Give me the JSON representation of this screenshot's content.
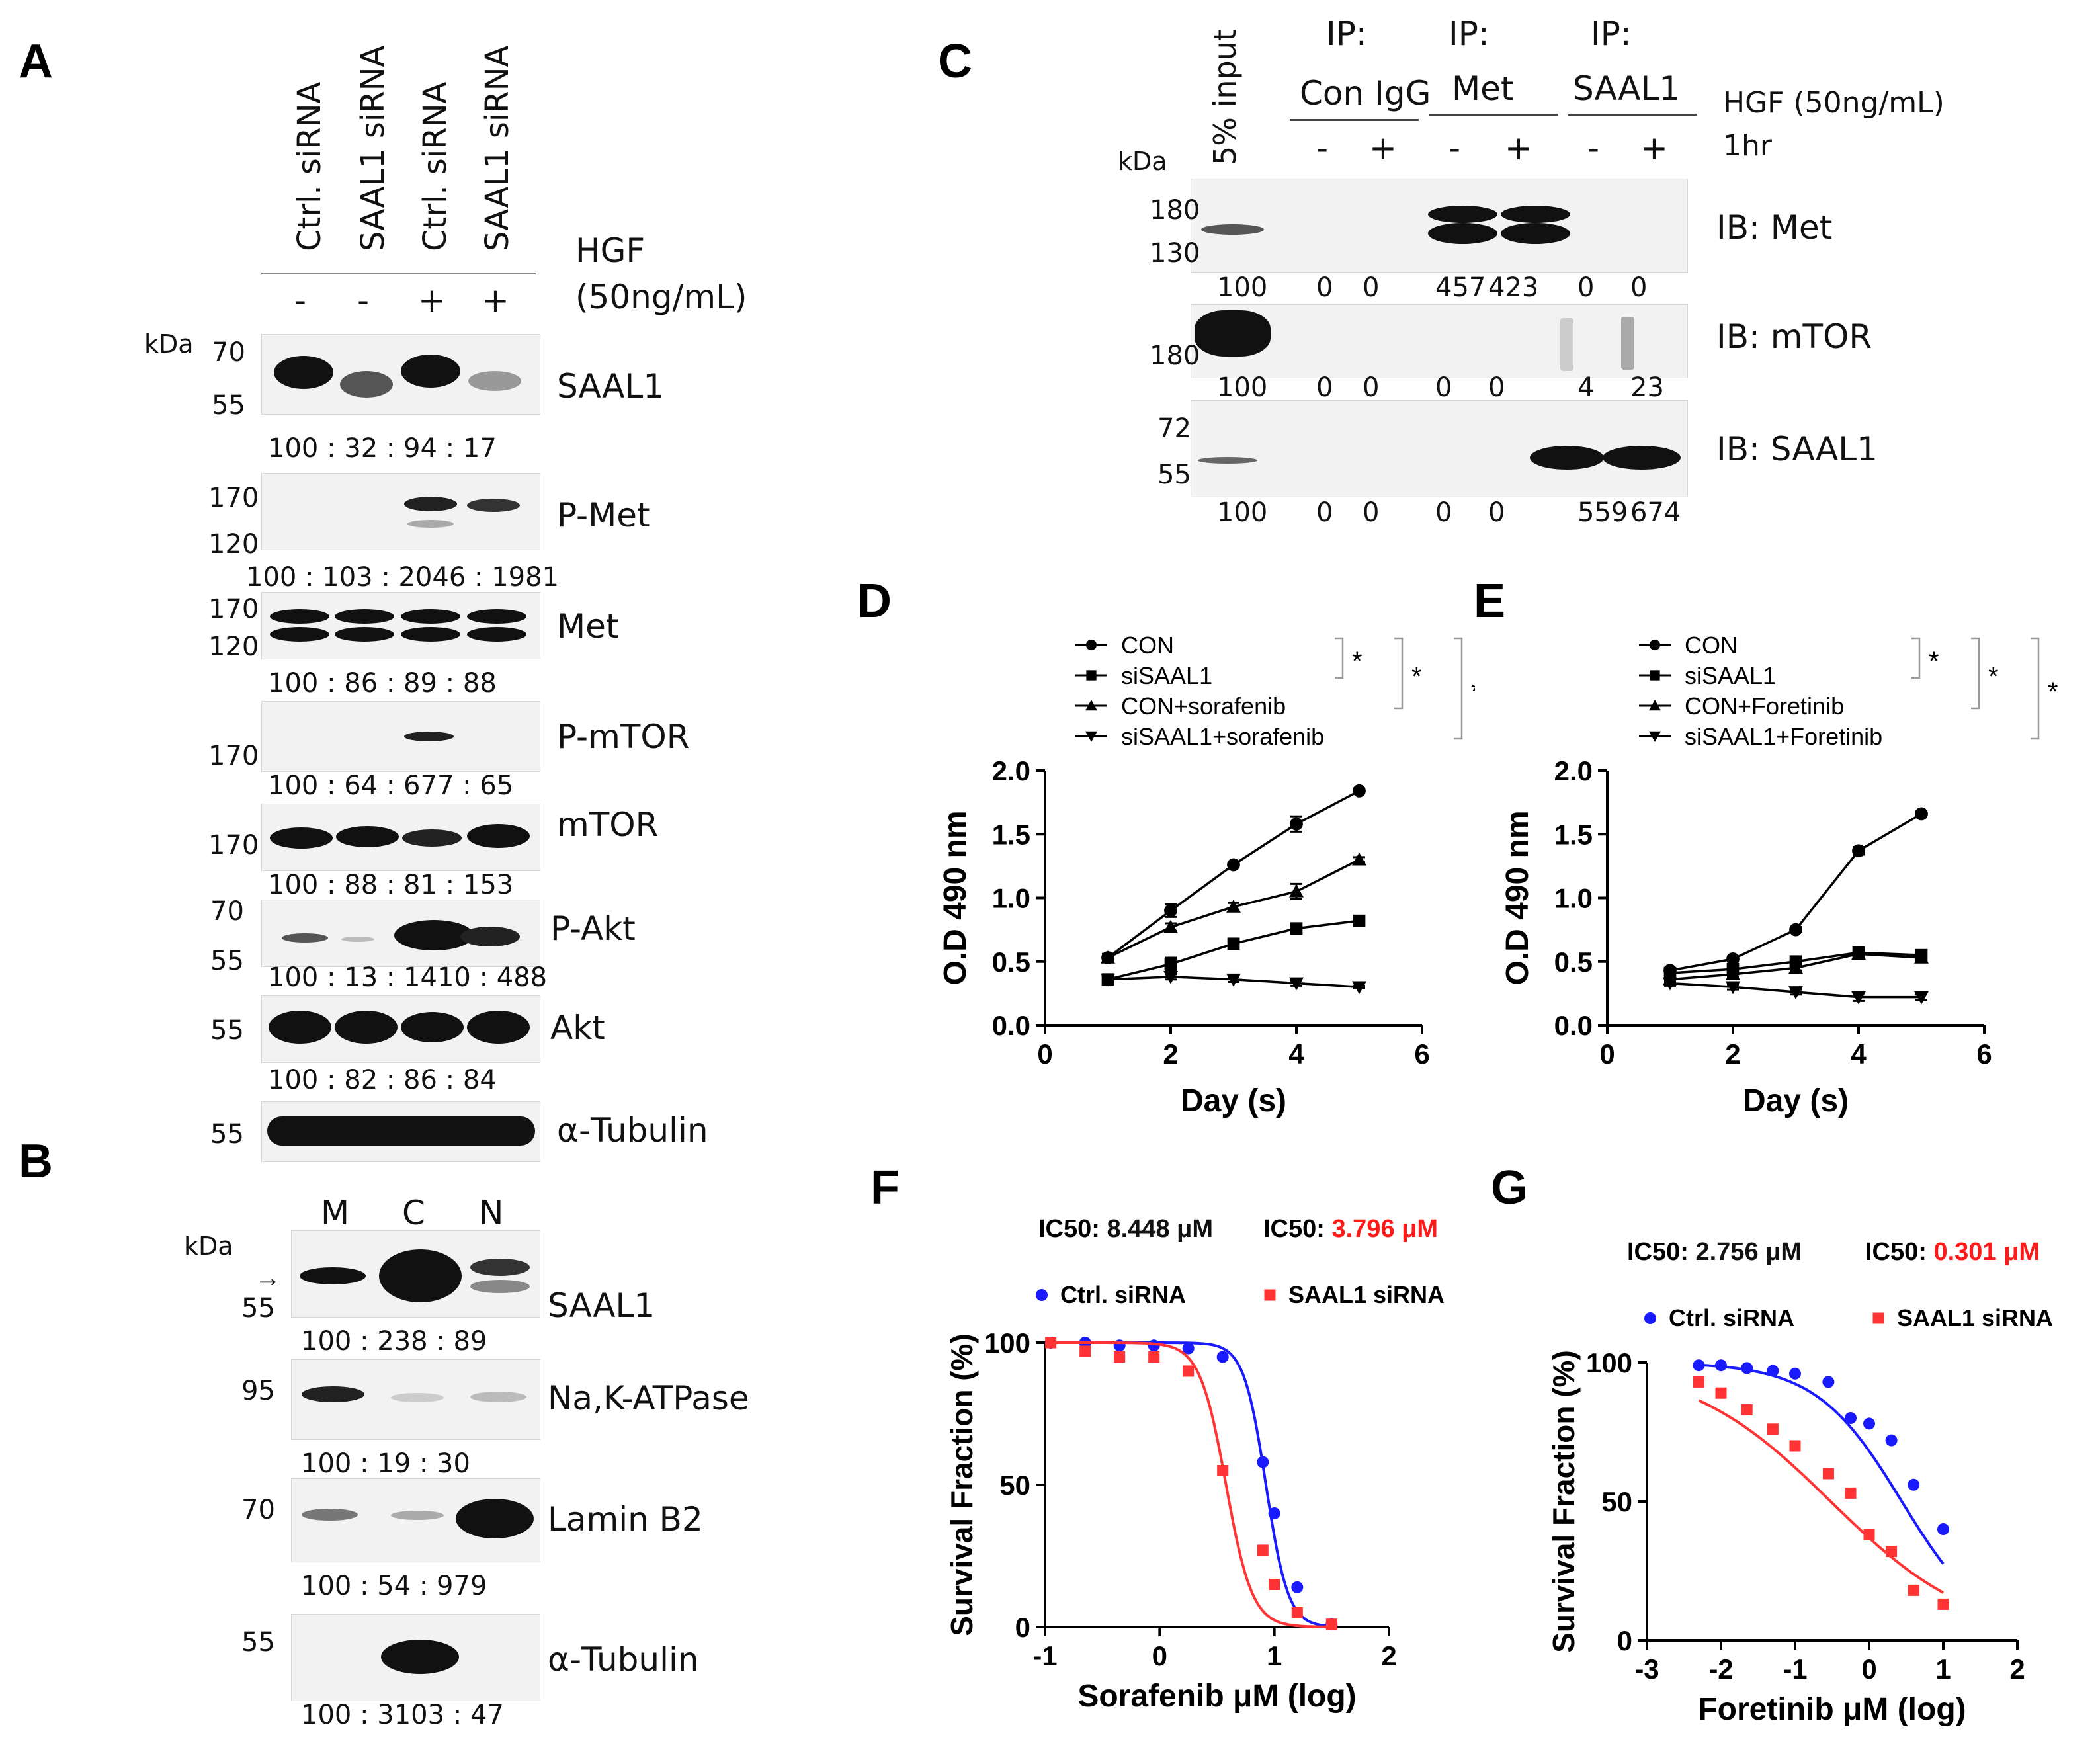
{
  "panels": {
    "A": "A",
    "B": "B",
    "C": "C",
    "D": "D",
    "E": "E",
    "F": "F",
    "G": "G"
  },
  "panelA": {
    "lanes": [
      "Ctrl. siRNA",
      "SAAL1 siRNA",
      "Ctrl. siRNA",
      "SAAL1 siRNA"
    ],
    "hgf": [
      "-",
      "-",
      "+",
      "+"
    ],
    "hgf_label_1": "HGF",
    "hgf_label_2": "(50ng/mL)",
    "kda": "kDa",
    "blots": [
      {
        "name": "SAAL1",
        "markers": [
          "70",
          "55"
        ],
        "quant": "100 :  32  : 94  :  17"
      },
      {
        "name": "P-Met",
        "markers": [
          "170",
          "120"
        ],
        "quant": "100  :  103 : 2046 : 1981"
      },
      {
        "name": "Met",
        "markers": [
          "170",
          "120"
        ],
        "quant": "100 :  86  :  89  :  88"
      },
      {
        "name": "P-mTOR",
        "markers": [
          "170"
        ],
        "quant": "100 :  64 : 677 :  65"
      },
      {
        "name": "mTOR",
        "markers": [
          "170"
        ],
        "quant": "100 :  88  :  81 : 153"
      },
      {
        "name": "P-Akt",
        "markers": [
          "70",
          "55"
        ],
        "quant": "100 : 13 : 1410 : 488"
      },
      {
        "name": "Akt",
        "markers": [
          "55"
        ],
        "quant": "100 : 82  :  86  :  84"
      },
      {
        "name": "α-Tubulin",
        "markers": [
          "55"
        ],
        "quant": ""
      }
    ]
  },
  "panelB": {
    "lanes": [
      "M",
      "C",
      "N"
    ],
    "kda": "kDa",
    "blots": [
      {
        "name": "SAAL1",
        "markers": [
          "55"
        ],
        "quant": "100 : 238  :  89"
      },
      {
        "name": "Na,K-ATPase",
        "markers": [
          "95"
        ],
        "quant": "100 :  19  :  30"
      },
      {
        "name": "Lamin B2",
        "markers": [
          "70"
        ],
        "quant": "100 :  54  : 979"
      },
      {
        "name": "α-Tubulin",
        "markers": [
          "55"
        ],
        "quant": "100 : 3103 : 47"
      }
    ]
  },
  "panelC": {
    "input_label": "5% input",
    "ip": [
      {
        "top": "IP:",
        "name": "Con IgG"
      },
      {
        "top": "IP:",
        "name": "Met"
      },
      {
        "top": "IP:",
        "name": "SAAL1"
      }
    ],
    "signs": [
      "-",
      "+",
      "-",
      "+",
      "-",
      "+"
    ],
    "hgf_label": "HGF (50ng/mL)",
    "time_label": "1hr",
    "kda": "kDa",
    "blots": [
      {
        "name": "IB: Met",
        "markers": [
          "180",
          "130"
        ],
        "quant": [
          "100",
          "0",
          "0",
          "457",
          "423",
          "0",
          "0"
        ]
      },
      {
        "name": "IB: mTOR",
        "markers": [
          "180"
        ],
        "quant": [
          "100",
          "0",
          "0",
          "0",
          "0",
          "4",
          "23"
        ]
      },
      {
        "name": "IB: SAAL1",
        "markers": [
          "72",
          "55"
        ],
        "quant": [
          "100",
          "0",
          "0",
          "0",
          "0",
          "559",
          "674"
        ]
      }
    ]
  },
  "chart_data": [
    {
      "id": "D",
      "type": "line",
      "xlabel": "Day (s)",
      "ylabel": "O.D 490 nm",
      "xlim": [
        0,
        6
      ],
      "ylim": [
        0,
        2.0
      ],
      "xticks": [
        "0",
        "2",
        "4",
        "6"
      ],
      "yticks": [
        "0.0",
        "0.5",
        "1.0",
        "1.5",
        "2.0"
      ],
      "sig": "*",
      "series": [
        {
          "name": "CON",
          "marker": "circle",
          "x": [
            1,
            2,
            3,
            4,
            5
          ],
          "y": [
            0.53,
            0.9,
            1.26,
            1.58,
            1.84
          ],
          "err": [
            0.03,
            0.05,
            0.02,
            0.06,
            0.02
          ]
        },
        {
          "name": "siSAAL1",
          "marker": "square",
          "x": [
            1,
            2,
            3,
            4,
            5
          ],
          "y": [
            0.36,
            0.48,
            0.64,
            0.76,
            0.82
          ],
          "err": [
            0.02,
            0.05,
            0.02,
            0.02,
            0.03
          ]
        },
        {
          "name": "CON+sorafenib",
          "marker": "triangle-up",
          "x": [
            1,
            2,
            3,
            4,
            5
          ],
          "y": [
            0.53,
            0.77,
            0.93,
            1.05,
            1.3
          ],
          "err": [
            0.02,
            0.03,
            0.03,
            0.06,
            0.02
          ]
        },
        {
          "name": "siSAAL1+sorafenib",
          "marker": "triangle-down",
          "x": [
            1,
            2,
            3,
            4,
            5
          ],
          "y": [
            0.36,
            0.38,
            0.36,
            0.33,
            0.3
          ],
          "err": [
            0.02,
            0.02,
            0.02,
            0.02,
            0.01
          ]
        }
      ]
    },
    {
      "id": "E",
      "type": "line",
      "xlabel": "Day (s)",
      "ylabel": "O.D 490 nm",
      "xlim": [
        0,
        6
      ],
      "ylim": [
        0,
        2.0
      ],
      "xticks": [
        "0",
        "2",
        "4",
        "6"
      ],
      "yticks": [
        "0.0",
        "0.5",
        "1.0",
        "1.5",
        "2.0"
      ],
      "sig": "*",
      "series": [
        {
          "name": "CON",
          "marker": "circle",
          "x": [
            1,
            2,
            3,
            4,
            5
          ],
          "y": [
            0.43,
            0.52,
            0.75,
            1.37,
            1.66
          ],
          "err": [
            0.02,
            0.02,
            0.02,
            0.03,
            0.02
          ]
        },
        {
          "name": "siSAAL1",
          "marker": "square",
          "x": [
            1,
            2,
            3,
            4,
            5
          ],
          "y": [
            0.41,
            0.44,
            0.5,
            0.57,
            0.55
          ],
          "err": [
            0.02,
            0.02,
            0.02,
            0.02,
            0.03
          ]
        },
        {
          "name": "CON+Foretinib",
          "marker": "triangle-up",
          "x": [
            1,
            2,
            3,
            4,
            5
          ],
          "y": [
            0.36,
            0.4,
            0.45,
            0.56,
            0.53
          ],
          "err": [
            0.02,
            0.02,
            0.02,
            0.02,
            0.02
          ]
        },
        {
          "name": "siSAAL1+Foretinib",
          "marker": "triangle-down",
          "x": [
            1,
            2,
            3,
            4,
            5
          ],
          "y": [
            0.33,
            0.3,
            0.26,
            0.22,
            0.22
          ],
          "err": [
            0.02,
            0.02,
            0.02,
            0.03,
            0.02
          ]
        }
      ]
    },
    {
      "id": "F",
      "type": "scatter",
      "xlabel": "Sorafenib μM (log)",
      "ylabel": "Survival Fraction (%)",
      "xlim": [
        -1,
        2
      ],
      "ylim": [
        0,
        100
      ],
      "xticks": [
        "-1",
        "0",
        "1",
        "2"
      ],
      "yticks": [
        "0",
        "50",
        "100"
      ],
      "ic50": [
        {
          "prefix": "IC50: ",
          "value": "8.448 μM",
          "color": "#111111"
        },
        {
          "prefix": "IC50: ",
          "value": "3.796 μM",
          "color": "#ff1a1a"
        }
      ],
      "series": [
        {
          "name": "Ctrl. siRNA",
          "color": "#1a1aff",
          "marker": "circle",
          "x": [
            -0.95,
            -0.65,
            -0.35,
            -0.05,
            0.25,
            0.55,
            0.9,
            1.0,
            1.2,
            1.5
          ],
          "y": [
            100,
            100,
            99,
            99,
            98,
            95,
            58,
            40,
            14,
            1
          ],
          "fit": {
            "top": 100,
            "bottom": 0,
            "logic50": 0.927,
            "hill": 4.5
          }
        },
        {
          "name": "SAAL1 siRNA",
          "color": "#ff3333",
          "marker": "square",
          "x": [
            -0.95,
            -0.65,
            -0.35,
            -0.05,
            0.25,
            0.55,
            0.9,
            1.0,
            1.2,
            1.5
          ],
          "y": [
            100,
            97,
            95,
            95,
            90,
            55,
            27,
            15,
            5,
            1
          ],
          "fit": {
            "top": 100,
            "bottom": 0,
            "logic50": 0.579,
            "hill": 3.8
          }
        }
      ]
    },
    {
      "id": "G",
      "type": "scatter",
      "xlabel": "Foretinib μM (log)",
      "ylabel": "Survival Fraction (%)",
      "xlim": [
        -3,
        2
      ],
      "ylim": [
        0,
        100
      ],
      "xticks": [
        "-3",
        "-2",
        "-1",
        "0",
        "1",
        "2"
      ],
      "yticks": [
        "0",
        "50",
        "100"
      ],
      "ic50": [
        {
          "prefix": "IC50: ",
          "value": "2.756 μM",
          "color": "#111111"
        },
        {
          "prefix": "IC50: ",
          "value": "0.301 μM",
          "color": "#ff1a1a"
        }
      ],
      "series": [
        {
          "name": "Ctrl. siRNA",
          "color": "#1a1aff",
          "marker": "circle",
          "x": [
            -2.3,
            -2.0,
            -1.65,
            -1.3,
            -1.0,
            -0.55,
            -0.25,
            0.0,
            0.3,
            0.6,
            1.0
          ],
          "y": [
            99,
            99,
            98,
            97,
            96,
            93,
            80,
            78,
            72,
            56,
            40
          ],
          "fit": {
            "top": 100,
            "bottom": 0,
            "logic50": 0.44,
            "hill": 0.75
          }
        },
        {
          "name": "SAAL1 siRNA",
          "color": "#ff3333",
          "marker": "square",
          "x": [
            -2.3,
            -2.0,
            -1.65,
            -1.3,
            -1.0,
            -0.55,
            -0.25,
            0.0,
            0.3,
            0.6,
            1.0
          ],
          "y": [
            93,
            89,
            83,
            76,
            70,
            60,
            53,
            38,
            32,
            18,
            13
          ],
          "fit": {
            "top": 100,
            "bottom": 0,
            "logic50": -0.52,
            "hill": 0.45
          }
        }
      ]
    }
  ]
}
